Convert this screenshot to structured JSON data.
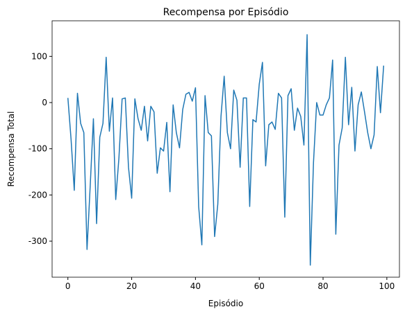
{
  "chart_data": {
    "type": "line",
    "title": "Recompensa por Episódio",
    "xlabel": "Episódio",
    "ylabel": "Recompensa Total",
    "x": [
      0,
      1,
      2,
      3,
      4,
      5,
      6,
      7,
      8,
      9,
      10,
      11,
      12,
      13,
      14,
      15,
      16,
      17,
      18,
      19,
      20,
      21,
      22,
      23,
      24,
      25,
      26,
      27,
      28,
      29,
      30,
      31,
      32,
      33,
      34,
      35,
      36,
      37,
      38,
      39,
      40,
      41,
      42,
      43,
      44,
      45,
      46,
      47,
      48,
      49,
      50,
      51,
      52,
      53,
      54,
      55,
      56,
      57,
      58,
      59,
      60,
      61,
      62,
      63,
      64,
      65,
      66,
      67,
      68,
      69,
      70,
      71,
      72,
      73,
      74,
      75,
      76,
      77,
      78,
      79,
      80,
      81,
      82,
      83,
      84,
      85,
      86,
      87,
      88,
      89,
      90,
      91,
      92,
      93,
      94,
      95,
      96,
      97,
      98,
      99
    ],
    "series": [
      {
        "name": "Recompensa Total",
        "color": "#1f77b4",
        "values": [
          10,
          -80,
          -190,
          20,
          -45,
          -65,
          -318,
          -180,
          -35,
          -262,
          -75,
          -45,
          98,
          -62,
          10,
          -210,
          -120,
          8,
          10,
          -140,
          -207,
          8,
          -35,
          -60,
          -8,
          -83,
          -8,
          -20,
          -153,
          -98,
          -105,
          -43,
          -193,
          -5,
          -65,
          -98,
          -15,
          18,
          22,
          3,
          32,
          -225,
          -308,
          15,
          -65,
          -72,
          -290,
          -220,
          -30,
          57,
          -65,
          -100,
          27,
          5,
          -140,
          10,
          10,
          -225,
          -37,
          -42,
          40,
          87,
          -137,
          -48,
          -42,
          -58,
          20,
          10,
          -248,
          15,
          30,
          -60,
          -12,
          -30,
          -92,
          147,
          -352,
          -130,
          0,
          -27,
          -27,
          -5,
          10,
          92,
          -285,
          -92,
          -55,
          98,
          -48,
          33,
          -105,
          -5,
          23,
          -20,
          -65,
          -100,
          -70,
          78,
          -22,
          80
        ]
      }
    ],
    "xlim": [
      -4.95,
      103.95
    ],
    "xticks": [
      0,
      20,
      40,
      60,
      80,
      100
    ],
    "ylim": [
      -378,
      177
    ],
    "yticks": [
      -300,
      -200,
      -100,
      0,
      100
    ]
  }
}
